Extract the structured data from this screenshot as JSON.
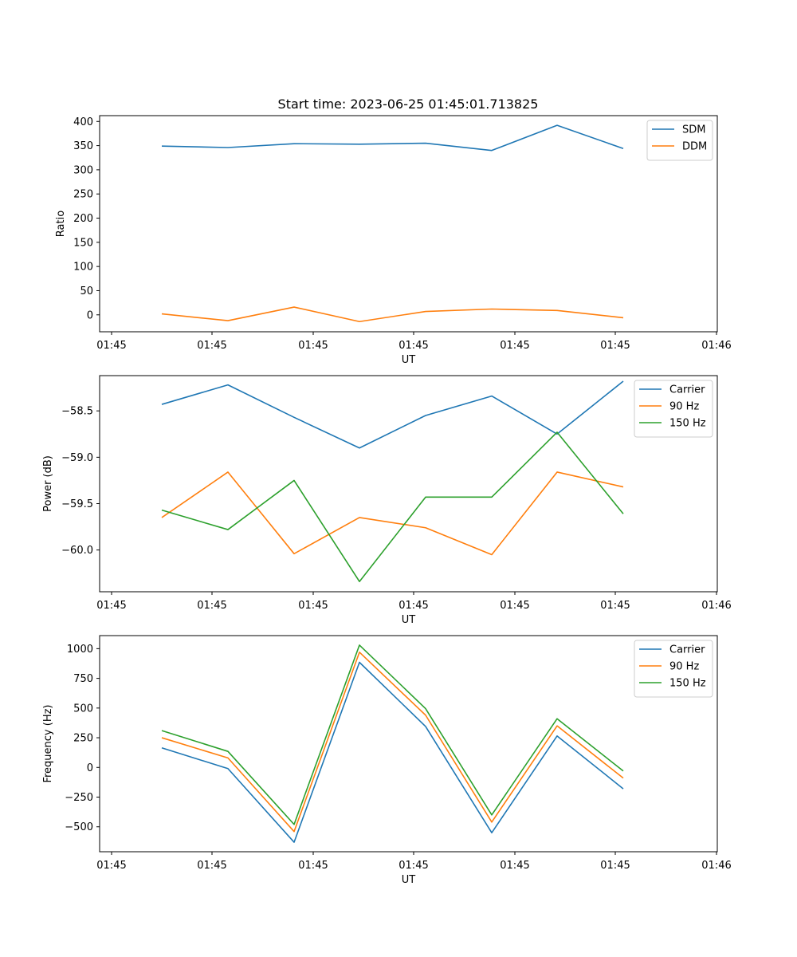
{
  "figure_title": "Start time: 2023-06-25 01:45:01.713825",
  "colors": {
    "blue": "#1f77b4",
    "orange": "#ff7f0e",
    "green": "#2ca02c"
  },
  "chart_data": [
    {
      "type": "line",
      "x_tick_labels": [
        "01:45",
        "01:45",
        "01:45",
        "01:45",
        "01:45",
        "01:45",
        "01:46"
      ],
      "xlabel": "UT",
      "ylabel": "Ratio",
      "ylim": [
        -35,
        412
      ],
      "y_ticks": [
        0,
        50,
        100,
        150,
        200,
        250,
        300,
        350,
        400
      ],
      "y_tick_labels": [
        "0",
        "50",
        "100",
        "150",
        "200",
        "250",
        "300",
        "350",
        "400"
      ],
      "legend_position": "upper-right",
      "series": [
        {
          "name": "SDM",
          "color": "#1f77b4",
          "values": [
            349,
            346,
            354,
            353,
            355,
            340,
            392,
            344
          ]
        },
        {
          "name": "DDM",
          "color": "#ff7f0e",
          "values": [
            2,
            -12,
            16,
            -14,
            7,
            12,
            9,
            -6
          ]
        }
      ]
    },
    {
      "type": "line",
      "x_tick_labels": [
        "01:45",
        "01:45",
        "01:45",
        "01:45",
        "01:45",
        "01:45",
        "01:46"
      ],
      "xlabel": "UT",
      "ylabel": "Power (dB)",
      "ylim": [
        -60.45,
        -58.12
      ],
      "y_ticks": [
        -60.0,
        -59.5,
        -59.0,
        -58.5
      ],
      "y_tick_labels": [
        "−60.0",
        "−59.5",
        "−59.0",
        "−58.5"
      ],
      "legend_position": "upper-right",
      "series": [
        {
          "name": "Carrier",
          "color": "#1f77b4",
          "values": [
            -58.43,
            -58.22,
            -58.57,
            -58.9,
            -58.55,
            -58.34,
            -58.75,
            -58.18
          ]
        },
        {
          "name": "90 Hz",
          "color": "#ff7f0e",
          "values": [
            -59.65,
            -59.16,
            -60.04,
            -59.65,
            -59.76,
            -60.05,
            -59.16,
            -59.32
          ]
        },
        {
          "name": "150 Hz",
          "color": "#2ca02c",
          "values": [
            -59.57,
            -59.78,
            -59.25,
            -60.34,
            -59.43,
            -59.43,
            -58.73,
            -59.61
          ]
        }
      ]
    },
    {
      "type": "line",
      "x_tick_labels": [
        "01:45",
        "01:45",
        "01:45",
        "01:45",
        "01:45",
        "01:45",
        "01:46"
      ],
      "xlabel": "UT",
      "ylabel": "Frequency (Hz)",
      "ylim": [
        -710,
        1110
      ],
      "y_ticks": [
        -500,
        -250,
        0,
        250,
        500,
        750,
        1000
      ],
      "y_tick_labels": [
        "−500",
        "−250",
        "0",
        "250",
        "500",
        "750",
        "1000"
      ],
      "legend_position": "upper-right",
      "series": [
        {
          "name": "Carrier",
          "color": "#1f77b4",
          "values": [
            165,
            -10,
            -630,
            885,
            345,
            -550,
            265,
            -180
          ]
        },
        {
          "name": "90 Hz",
          "color": "#ff7f0e",
          "values": [
            250,
            80,
            -540,
            970,
            440,
            -460,
            350,
            -90
          ]
        },
        {
          "name": "150 Hz",
          "color": "#2ca02c",
          "values": [
            310,
            135,
            -480,
            1030,
            495,
            -400,
            410,
            -30
          ]
        }
      ]
    }
  ]
}
